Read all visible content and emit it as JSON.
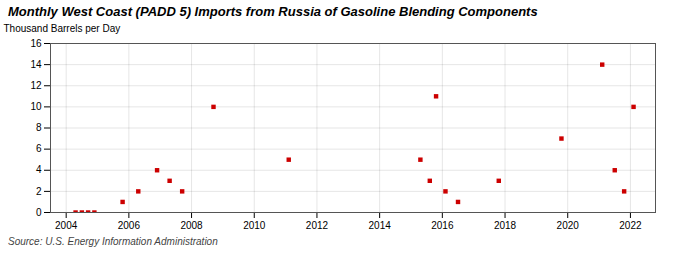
{
  "chart_data": {
    "type": "scatter",
    "title": "Monthly West Coast (PADD 5) Imports from Russia of Gasoline Blending Components",
    "ylabel": "Thousand Barrels per Day",
    "source": "Source: U.S. Energy Information Administration",
    "x": [
      2004.3,
      2004.5,
      2004.7,
      2004.9,
      2005.8,
      2006.3,
      2006.9,
      2007.3,
      2007.7,
      2008.7,
      2011.1,
      2015.3,
      2015.6,
      2015.8,
      2016.1,
      2016.5,
      2017.8,
      2019.8,
      2021.1,
      2021.5,
      2021.8,
      2022.1
    ],
    "values": [
      0,
      0,
      0,
      0,
      1,
      2,
      4,
      3,
      2,
      10,
      5,
      5,
      3,
      11,
      2,
      1,
      3,
      7,
      14,
      4,
      2,
      10
    ],
    "color": "#cc0000",
    "marker": "square",
    "xlim": [
      2003.5,
      2022.8
    ],
    "ylim": [
      0,
      16
    ],
    "xticks": [
      2004,
      2006,
      2008,
      2010,
      2012,
      2014,
      2016,
      2018,
      2020,
      2022
    ],
    "yticks": [
      0,
      2,
      4,
      6,
      8,
      10,
      12,
      14,
      16
    ],
    "grid": true
  }
}
